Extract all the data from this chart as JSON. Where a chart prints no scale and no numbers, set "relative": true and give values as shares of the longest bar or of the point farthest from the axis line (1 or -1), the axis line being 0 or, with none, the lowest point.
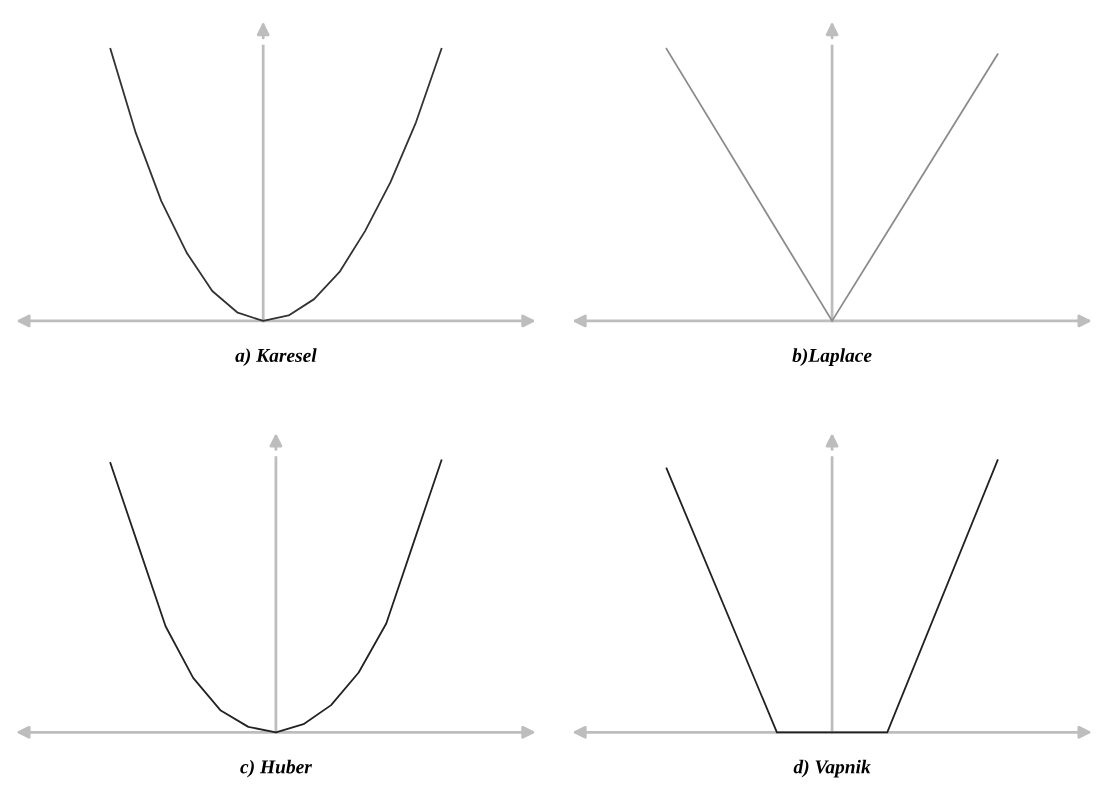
{
  "chart_data": [
    {
      "type": "line",
      "relative": true,
      "xlabel": "a) Karesel",
      "categories": [
        null,
        null,
        null,
        null,
        null,
        null,
        null,
        null,
        null,
        null,
        null,
        null,
        null,
        null
      ],
      "series": [
        {
          "color": "#333333",
          "values": [
            1,
            0.69,
            0.44,
            0.25,
            0.11,
            0.03,
            0,
            0.02,
            0.08,
            0.18,
            0.33,
            0.51,
            0.73,
            1
          ]
        }
      ]
    },
    {
      "type": "line",
      "relative": true,
      "xlabel": "b)Laplace",
      "categories": [
        null,
        null,
        null
      ],
      "series": [
        {
          "color": "#8c8c8c",
          "values": [
            1,
            0,
            0.98
          ]
        }
      ]
    },
    {
      "type": "line",
      "relative": true,
      "xlabel": "c) Huber",
      "categories": [
        null,
        null,
        null,
        null,
        null,
        null,
        null,
        null,
        null,
        null,
        null,
        null,
        null
      ],
      "series": [
        {
          "color": "#222222",
          "values": [
            0.99,
            0.69,
            0.39,
            0.2,
            0.08,
            0.02,
            0,
            0.03,
            0.1,
            0.22,
            0.4,
            0.7,
            1
          ]
        }
      ]
    },
    {
      "type": "line",
      "relative": true,
      "xlabel": "d) Vapnik",
      "categories": [
        null,
        null,
        null,
        null
      ],
      "series": [
        {
          "color": "#222222",
          "values": [
            0.97,
            0,
            0,
            1
          ]
        }
      ]
    }
  ]
}
